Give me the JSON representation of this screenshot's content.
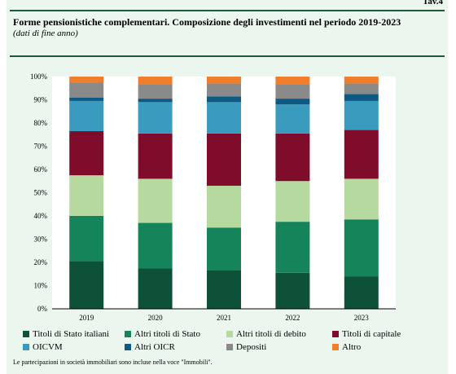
{
  "header": {
    "tav": "Tav.4",
    "title": "Forme pensionistiche complementari. Composizione degli investimenti nel periodo 2019-2023",
    "subtitle": "(dati di fine anno)"
  },
  "note": "Le partecipazioni in società immobiliari sono incluse nella voce \"Immobili\".",
  "chart_data": {
    "type": "bar",
    "stacked": true,
    "categories": [
      "2019",
      "2020",
      "2021",
      "2022",
      "2023"
    ],
    "ylim": [
      0,
      100
    ],
    "yticks": [
      "0%",
      "10%",
      "20%",
      "30%",
      "40%",
      "50%",
      "60%",
      "70%",
      "80%",
      "90%",
      "100%"
    ],
    "series": [
      {
        "name": "Titoli di Stato italiani",
        "color": "#0d5238",
        "values": [
          20.5,
          17.5,
          16.5,
          15.5,
          14
        ]
      },
      {
        "name": "Altri titoli di Stato",
        "color": "#16845a",
        "values": [
          19.5,
          19.5,
          18.5,
          22,
          24.5
        ]
      },
      {
        "name": "Altri titoli di debito",
        "color": "#b5d99f",
        "values": [
          17.5,
          19,
          18,
          17.5,
          17.5
        ]
      },
      {
        "name": "Titoli di capitale",
        "color": "#800c2c",
        "values": [
          19,
          19.5,
          22.5,
          20.5,
          21
        ]
      },
      {
        "name": "OICVM",
        "color": "#3a9bbf",
        "values": [
          13,
          13.5,
          13.5,
          12.5,
          12.5
        ]
      },
      {
        "name": "Altri OICR",
        "color": "#0e5a82",
        "values": [
          1.5,
          1.5,
          2.5,
          2.5,
          3
        ]
      },
      {
        "name": "Depositi",
        "color": "#8a8a8a",
        "values": [
          6.5,
          6,
          5.5,
          6,
          4.5
        ]
      },
      {
        "name": "Altro",
        "color": "#f07d2a",
        "values": [
          2.5,
          3.5,
          3,
          3.5,
          3
        ]
      }
    ],
    "legend": "bottom"
  }
}
